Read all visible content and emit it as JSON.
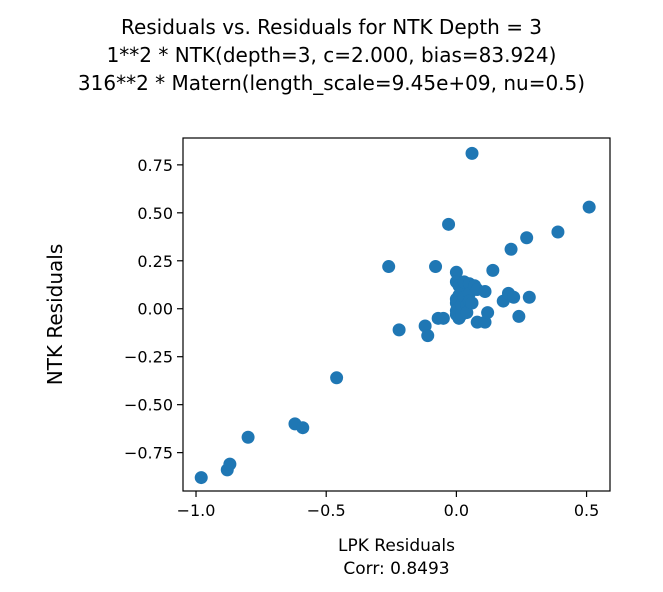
{
  "chart_data": {
    "type": "scatter",
    "title_lines": [
      "Residuals vs. Residuals for NTK Depth = 3",
      "1**2 * NTK(depth=3, c=2.000, bias=83.924)",
      "316**2 * Matern(length_scale=9.45e+09, nu=0.5)"
    ],
    "xlabel": "LPK Residuals",
    "xlabel_sub": "Corr: 0.8493",
    "ylabel": "NTK Residuals",
    "xlim": [
      -1.05,
      0.59
    ],
    "ylim": [
      -0.95,
      0.89
    ],
    "xticks": [
      -1.0,
      -0.5,
      0.0,
      0.5
    ],
    "xtick_labels": [
      "−1.0",
      "−0.5",
      "0.0",
      "0.5"
    ],
    "yticks": [
      -0.75,
      -0.5,
      -0.25,
      0.0,
      0.25,
      0.5,
      0.75
    ],
    "ytick_labels": [
      "−0.75",
      "−0.50",
      "−0.25",
      "0.00",
      "0.25",
      "0.50",
      "0.75"
    ],
    "grid": false,
    "marker_color": "#1f77b4",
    "points": [
      [
        -0.98,
        -0.88
      ],
      [
        -0.88,
        -0.84
      ],
      [
        -0.87,
        -0.81
      ],
      [
        -0.8,
        -0.67
      ],
      [
        -0.62,
        -0.6
      ],
      [
        -0.59,
        -0.62
      ],
      [
        -0.46,
        -0.36
      ],
      [
        -0.26,
        0.22
      ],
      [
        -0.22,
        -0.11
      ],
      [
        -0.12,
        -0.09
      ],
      [
        -0.11,
        -0.14
      ],
      [
        -0.08,
        0.22
      ],
      [
        -0.07,
        -0.05
      ],
      [
        -0.05,
        -0.05
      ],
      [
        -0.03,
        0.44
      ],
      [
        0.0,
        0.19
      ],
      [
        0.0,
        0.14
      ],
      [
        0.01,
        0.12
      ],
      [
        0.01,
        0.07
      ],
      [
        0.0,
        0.05
      ],
      [
        0.0,
        0.03
      ],
      [
        0.01,
        0.01
      ],
      [
        0.0,
        -0.01
      ],
      [
        0.0,
        -0.03
      ],
      [
        0.01,
        -0.05
      ],
      [
        0.02,
        -0.03
      ],
      [
        0.02,
        0.02
      ],
      [
        0.02,
        0.09
      ],
      [
        0.03,
        0.14
      ],
      [
        0.03,
        0.06
      ],
      [
        0.04,
        0.02
      ],
      [
        0.04,
        -0.02
      ],
      [
        0.05,
        0.13
      ],
      [
        0.05,
        0.08
      ],
      [
        0.05,
        0.04
      ],
      [
        0.06,
        0.03
      ],
      [
        0.06,
        0.81
      ],
      [
        0.07,
        0.12
      ],
      [
        0.08,
        0.1
      ],
      [
        0.08,
        -0.07
      ],
      [
        0.11,
        0.09
      ],
      [
        0.11,
        -0.07
      ],
      [
        0.12,
        -0.02
      ],
      [
        0.14,
        0.2
      ],
      [
        0.18,
        0.04
      ],
      [
        0.2,
        0.08
      ],
      [
        0.21,
        0.31
      ],
      [
        0.22,
        0.06
      ],
      [
        0.24,
        -0.04
      ],
      [
        0.27,
        0.37
      ],
      [
        0.28,
        0.06
      ],
      [
        0.39,
        0.4
      ],
      [
        0.51,
        0.53
      ]
    ]
  }
}
